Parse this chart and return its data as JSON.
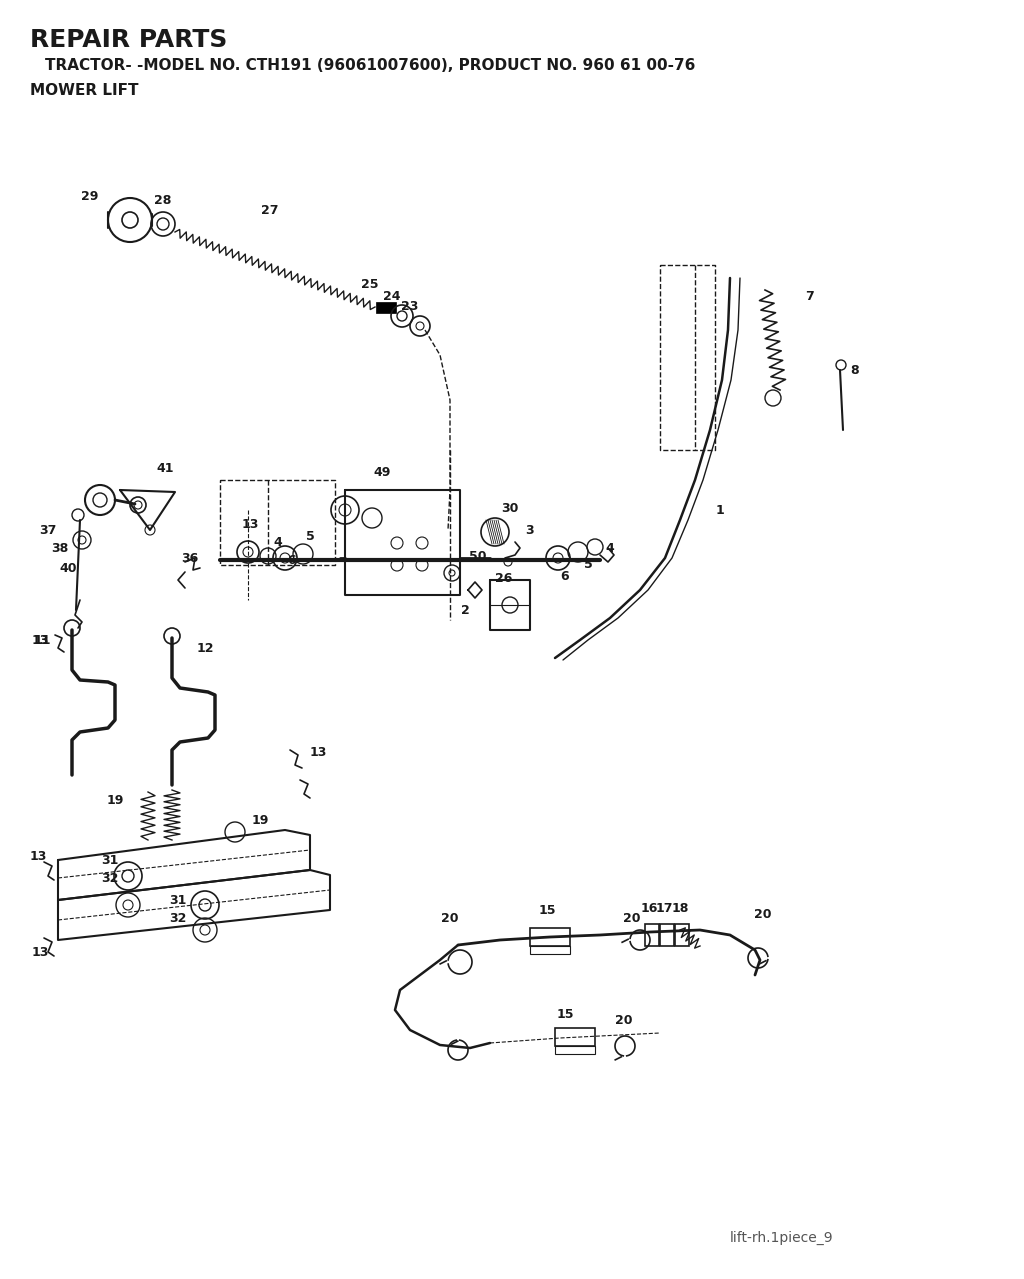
{
  "title_line1": "REPAIR PARTS",
  "title_line2": "   TRACTOR- -MODEL NO. CTH191 (96061007600), PRODUCT NO. 960 61 00-76",
  "title_line3": "MOWER LIFT",
  "footer": "lift-rh.1piece_9",
  "bg_color": "#ffffff",
  "line_color": "#1a1a1a",
  "fig_w": 10.24,
  "fig_h": 12.79,
  "dpi": 100
}
